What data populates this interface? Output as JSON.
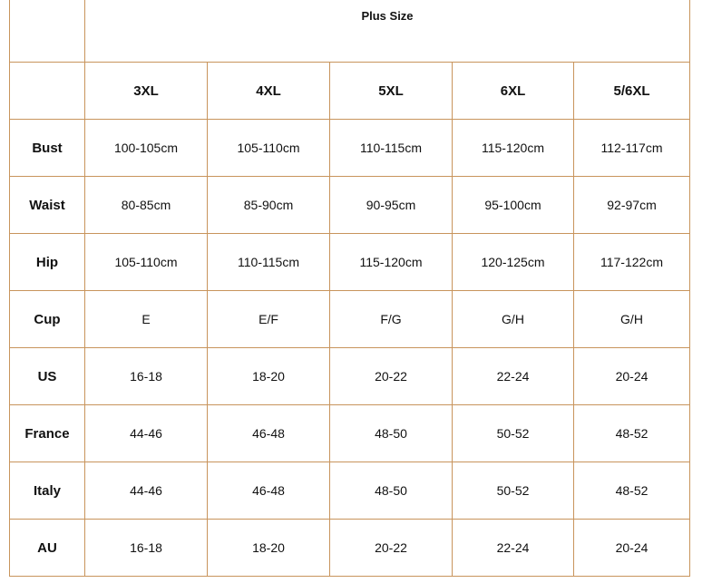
{
  "table": {
    "title": "Plus Size",
    "border_color": "#c8945c",
    "columns": [
      "3XL",
      "4XL",
      "5XL",
      "6XL",
      "5/6XL"
    ],
    "rows": [
      {
        "label": "Bust",
        "values": [
          "100-105cm",
          "105-110cm",
          "110-115cm",
          "115-120cm",
          "112-117cm"
        ]
      },
      {
        "label": "Waist",
        "values": [
          "80-85cm",
          "85-90cm",
          "90-95cm",
          "95-100cm",
          "92-97cm"
        ]
      },
      {
        "label": "Hip",
        "values": [
          "105-110cm",
          "110-115cm",
          "115-120cm",
          "120-125cm",
          "117-122cm"
        ]
      },
      {
        "label": "Cup",
        "values": [
          "E",
          "E/F",
          "F/G",
          "G/H",
          "G/H"
        ]
      },
      {
        "label": "US",
        "values": [
          "16-18",
          "18-20",
          "20-22",
          "22-24",
          "20-24"
        ]
      },
      {
        "label": "France",
        "values": [
          "44-46",
          "46-48",
          "48-50",
          "50-52",
          "48-52"
        ]
      },
      {
        "label": "Italy",
        "values": [
          "44-46",
          "46-48",
          "48-50",
          "50-52",
          "48-52"
        ]
      },
      {
        "label": "AU",
        "values": [
          "16-18",
          "18-20",
          "20-22",
          "22-24",
          "20-24"
        ]
      }
    ]
  }
}
